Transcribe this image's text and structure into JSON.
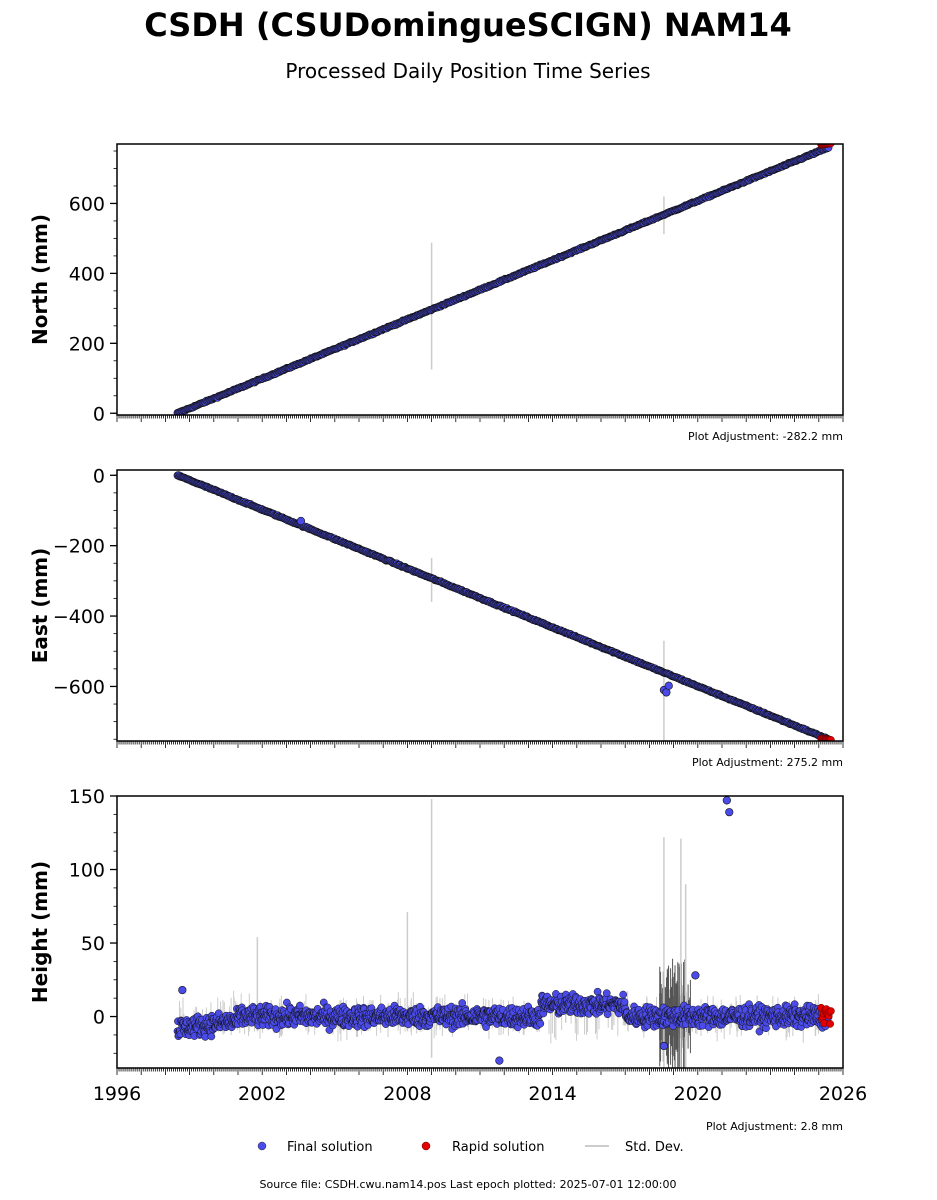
{
  "title": "CSDH (CSUDomingueSCIGN) NAM14",
  "subtitle": "Processed Daily Position Time Series",
  "footer": "Source file: CSDH.cwu.nam14.pos  Last epoch plotted: 2025-07-01 12:00:00",
  "legend": {
    "placement": "bottom-center",
    "items": [
      {
        "label": "Final solution",
        "color": "#4b4bea"
      },
      {
        "label": "Rapid solution",
        "color": "#e00000"
      },
      {
        "label": "Std. Dev.",
        "color": "#cccccc"
      }
    ]
  },
  "chart_data": [
    {
      "type": "scatter",
      "ylabel": "North (mm)",
      "xlim": [
        1996,
        2026
      ],
      "ylim": [
        -5,
        770
      ],
      "yticks": [
        0,
        200,
        400,
        600
      ],
      "yticklabels": [
        "0",
        "200",
        "400",
        "600"
      ],
      "annotation": "Plot Adjustment: -282.2 mm",
      "grid": false,
      "series": [
        {
          "role": "final",
          "x": [
            1998.5,
            2025.4
          ],
          "y": [
            0,
            760
          ],
          "trend": "linear"
        },
        {
          "role": "rapid",
          "x": [
            2025.1,
            2025.5
          ],
          "y": [
            768,
            772
          ]
        }
      ],
      "stddev_spikes": [
        {
          "x": 2009.0,
          "y_low": 125,
          "y_high": 488
        },
        {
          "x": 2018.6,
          "y_low": 512,
          "y_high": 620
        }
      ]
    },
    {
      "type": "scatter",
      "ylabel": "East (mm)",
      "xlim": [
        1996,
        2026
      ],
      "ylim": [
        -755,
        15
      ],
      "yticks": [
        0,
        -200,
        -400,
        -600
      ],
      "yticklabels": [
        "0",
        "−200",
        "−400",
        "−600"
      ],
      "annotation": "Plot Adjustment: 275.2 mm",
      "grid": false,
      "series": [
        {
          "role": "final",
          "x": [
            1998.5,
            2025.4
          ],
          "y": [
            0,
            -750
          ],
          "trend": "linear"
        },
        {
          "role": "rapid",
          "x": [
            2025.1,
            2025.5
          ],
          "y": [
            -748,
            -752
          ]
        }
      ],
      "outliers": [
        {
          "x": 2003.6,
          "y": -130
        },
        {
          "x": 2018.6,
          "y": -610
        },
        {
          "x": 2018.7,
          "y": -617
        },
        {
          "x": 2018.8,
          "y": -598
        }
      ],
      "stddev_spikes": [
        {
          "x": 2009.0,
          "y_low": -360,
          "y_high": -235
        },
        {
          "x": 2018.6,
          "y_low": -760,
          "y_high": -470
        }
      ]
    },
    {
      "type": "scatter",
      "ylabel": "Height (mm)",
      "xlim": [
        1996,
        2026
      ],
      "ylim": [
        -35,
        150
      ],
      "yticks": [
        0,
        50,
        100,
        150
      ],
      "yticklabels": [
        "0",
        "50",
        "100",
        "150"
      ],
      "xticks": [
        1996,
        2002,
        2008,
        2014,
        2020,
        2026
      ],
      "xticklabels": [
        "1996",
        "2002",
        "2008",
        "2014",
        "2020",
        "2026"
      ],
      "annotation": "Plot Adjustment: 2.8 mm",
      "grid": false,
      "series": [
        {
          "role": "final",
          "x": [
            1998.5,
            2025.4
          ],
          "y_band": [
            -20,
            20
          ],
          "trend": "scatter-about-zero"
        },
        {
          "role": "rapid",
          "x": [
            2025.1,
            2025.5
          ],
          "y_band": [
            -5,
            6
          ]
        }
      ],
      "outliers": [
        {
          "x": 2021.2,
          "y": 147
        },
        {
          "x": 2021.3,
          "y": 139
        },
        {
          "x": 2019.9,
          "y": 28
        },
        {
          "x": 2011.8,
          "y": -30
        },
        {
          "x": 2018.6,
          "y": -20
        },
        {
          "x": 1998.7,
          "y": 18
        }
      ],
      "stddev_spikes": [
        {
          "x": 2009.0,
          "y_low": -28,
          "y_high": 148
        },
        {
          "x": 2008.0,
          "y_low": -10,
          "y_high": 71
        },
        {
          "x": 2001.8,
          "y_low": -10,
          "y_high": 54
        },
        {
          "x": 2018.6,
          "y_low": -35,
          "y_high": 122
        },
        {
          "x": 2019.3,
          "y_low": -35,
          "y_high": 121
        },
        {
          "x": 2019.5,
          "y_low": -35,
          "y_high": 90
        }
      ]
    }
  ]
}
